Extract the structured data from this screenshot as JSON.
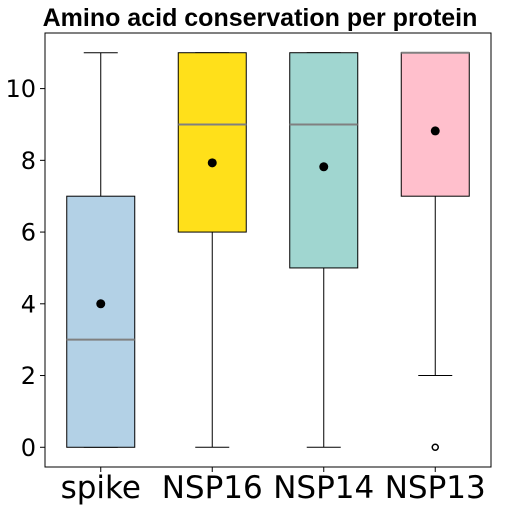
{
  "chart_data": {
    "type": "boxplot",
    "title": "Amino acid conservation per protein",
    "xlabel": "",
    "ylabel": "",
    "ylim": [
      -0.55,
      11.55
    ],
    "yticks": [
      0,
      2,
      4,
      6,
      8,
      10
    ],
    "grid": false,
    "categories": [
      "spike",
      "NSP16",
      "NSP14",
      "NSP13"
    ],
    "boxes": [
      {
        "name": "spike",
        "whisker_low": 0,
        "q1": 0,
        "median": 3,
        "q3": 7,
        "whisker_high": 11,
        "mean": 4.0,
        "outliers": [],
        "color": "#b3d1e6"
      },
      {
        "name": "NSP16",
        "whisker_low": 0,
        "q1": 6,
        "median": 9,
        "q3": 11,
        "whisker_high": 11,
        "mean": 7.93,
        "outliers": [],
        "color": "#ffe01a"
      },
      {
        "name": "NSP14",
        "whisker_low": 0,
        "q1": 5,
        "median": 9,
        "q3": 11,
        "whisker_high": 11,
        "mean": 7.82,
        "outliers": [],
        "color": "#a0d6d0"
      },
      {
        "name": "NSP13",
        "whisker_low": 2,
        "q1": 7,
        "median": 11,
        "q3": 11,
        "whisker_high": 11,
        "mean": 8.82,
        "outliers": [
          0
        ],
        "color": "#ffbfcc"
      }
    ]
  }
}
